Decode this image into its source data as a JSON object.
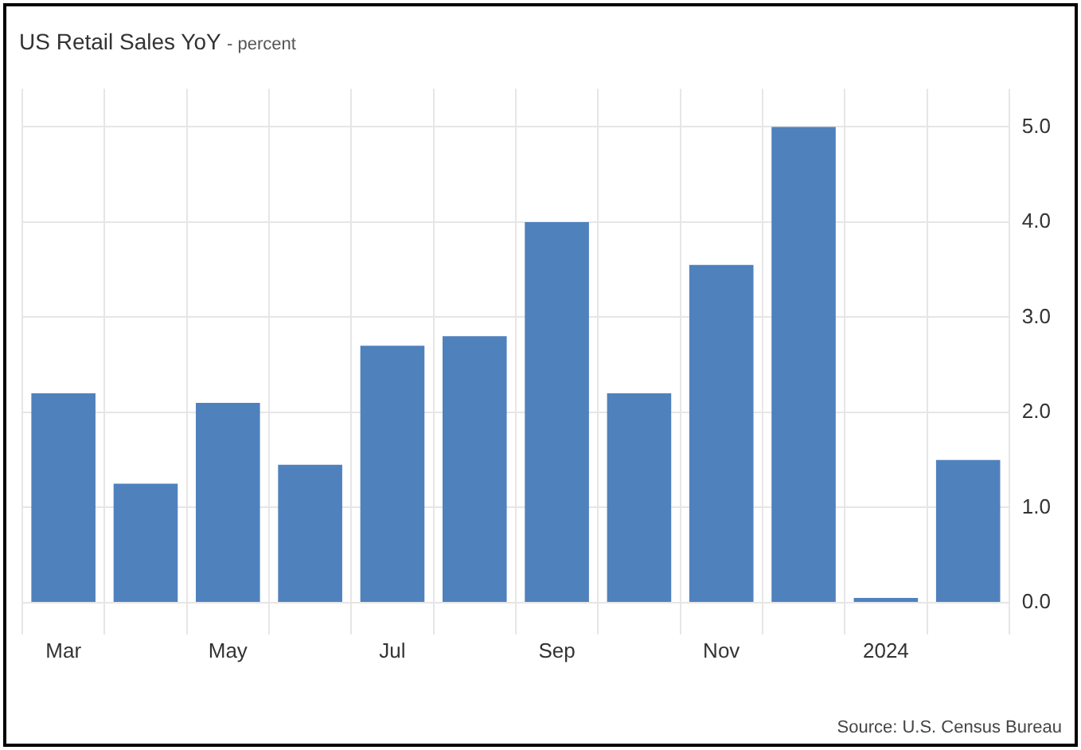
{
  "chart_data": {
    "type": "bar",
    "title": "US Retail Sales YoY",
    "subtitle": "- percent",
    "categories": [
      "Mar",
      null,
      "May",
      null,
      "Jul",
      null,
      "Sep",
      null,
      "Nov",
      null,
      "2024",
      null
    ],
    "values": [
      2.2,
      1.25,
      2.1,
      1.45,
      2.7,
      2.8,
      4.0,
      2.2,
      3.55,
      5.0,
      0.05,
      1.5
    ],
    "color": "#4f81bd",
    "ylim": [
      -0.2,
      5.4
    ],
    "yticks": [
      {
        "value": 0,
        "label": "0.0"
      },
      {
        "value": 1,
        "label": "1.0"
      },
      {
        "value": 2,
        "label": "2.0"
      },
      {
        "value": 3,
        "label": "3.0"
      },
      {
        "value": 4,
        "label": "4.0"
      },
      {
        "value": 5,
        "label": "5.0"
      }
    ],
    "grid": true,
    "annotations": [
      "Source: U.S. Census Bureau"
    ]
  }
}
